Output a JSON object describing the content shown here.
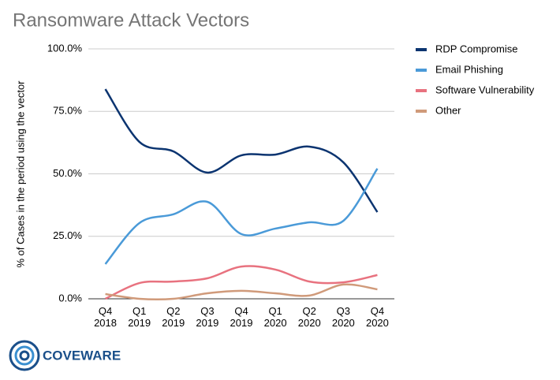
{
  "chart_data": {
    "type": "line",
    "title": "Ransomware Attack Vectors",
    "y_label": "% of Cases in the period using the vector",
    "categories": [
      "Q4\n2018",
      "Q1\n2019",
      "Q2\n2019",
      "Q3\n2019",
      "Q4\n2019",
      "Q1\n2020",
      "Q2\n2020",
      "Q3\n2020",
      "Q4\n2020"
    ],
    "series": [
      {
        "name": "RDP Compromise",
        "color": "#0b3470",
        "values": [
          83.9,
          62.8,
          59,
          50.5,
          57.4,
          57.7,
          60.9,
          54.6,
          34.7
        ]
      },
      {
        "name": "Email Phishing",
        "color": "#4a9ad8",
        "values": [
          13.9,
          30.3,
          33.8,
          38.8,
          25.9,
          28.1,
          30.6,
          31.2,
          52.1
        ]
      },
      {
        "name": "Software Vulnerability",
        "color": "#e8727f",
        "values": [
          0,
          6.3,
          6.9,
          8.2,
          12.9,
          11.7,
          6.9,
          6.6,
          9.5
        ]
      },
      {
        "name": "Other",
        "color": "#d09a7a",
        "values": [
          1.9,
          0,
          0,
          2.2,
          3.2,
          2.2,
          1.3,
          5.7,
          3.8
        ]
      }
    ],
    "ylim": [
      0,
      100
    ],
    "yticks": [
      {
        "value": 0,
        "label": "0.0%"
      },
      {
        "value": 25,
        "label": "25.0%"
      },
      {
        "value": 50,
        "label": "50.0%"
      },
      {
        "value": 75,
        "label": "75.0%"
      },
      {
        "value": 100,
        "label": "100.0%"
      }
    ],
    "grid": true,
    "legend": "right",
    "logo": "COVEWARE"
  }
}
